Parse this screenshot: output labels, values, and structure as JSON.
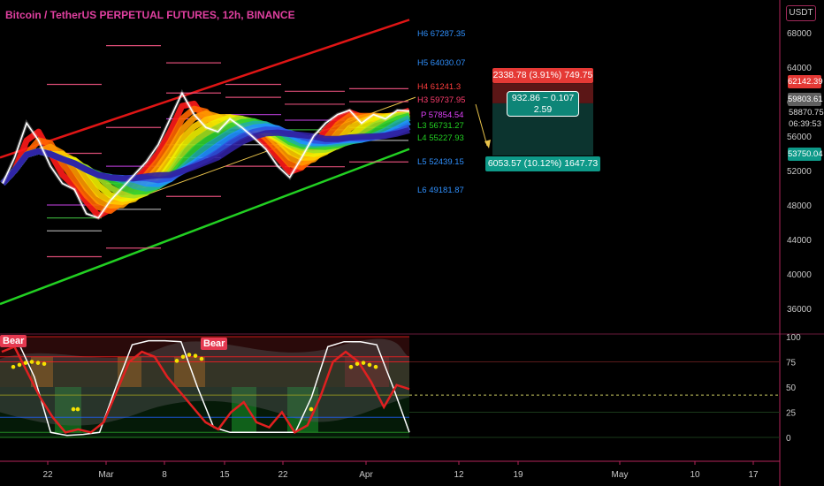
{
  "header": {
    "title": "Bitcoin / TetherUS PERPETUAL FUTURES, 12h, BINANCE",
    "currency": "USDT"
  },
  "colors": {
    "background": "#000000",
    "resistance": "#e01515",
    "support": "#22d022",
    "oscillator": "#e02020",
    "title": "#e040a0",
    "axis": "#b3255a"
  },
  "price_axis": {
    "ticks": [
      "68000",
      "64000",
      "60000",
      "56000",
      "52000",
      "48000",
      "44000",
      "40000",
      "36000"
    ],
    "labels": {
      "upper": "62142.39",
      "current": "59803.61",
      "last": "58870.75",
      "countdown": "06:39:53",
      "lower": "53750.04"
    }
  },
  "osc_axis": {
    "ticks": [
      "100",
      "75",
      "50",
      "25",
      "0"
    ]
  },
  "time_axis": {
    "ticks": [
      "22",
      "Mar",
      "8",
      "15",
      "22",
      "Apr",
      "12",
      "19",
      "May",
      "10",
      "17"
    ]
  },
  "levels": [
    {
      "label": "H6 67287.35",
      "color": "#2f8ffc"
    },
    {
      "label": "H5 64030.07",
      "color": "#2f8ffc"
    },
    {
      "label": "H4 61241.3",
      "color": "#ff3d3d"
    },
    {
      "label": "H3 59737.95",
      "color": "#ff3d6e"
    },
    {
      "label": "P 57854.54",
      "color": "#e040fb"
    },
    {
      "label": "L3 56731.27",
      "color": "#22d022"
    },
    {
      "label": "L4 55227.93",
      "color": "#22d022"
    },
    {
      "label": "L5 52439.15",
      "color": "#2f8ffc"
    },
    {
      "label": "L6 49181.87",
      "color": "#2f8ffc"
    }
  ],
  "trade_box": {
    "target": "2338.78 (3.91%) 749.75",
    "middle_line1": "932.86 ~ 0.107",
    "middle_line2": "2.59",
    "stop": "6053.57 (10.12%) 1647.73"
  },
  "signals": [
    "Bear",
    "Bear"
  ],
  "chart_data": [
    {
      "type": "line",
      "title": "Bitcoin / TetherUS PERPETUAL FUTURES, 12h, BINANCE",
      "xlabel": "",
      "ylabel": "",
      "ylim": [
        35000,
        70000
      ],
      "x_ticks": [
        "22",
        "Mar",
        "8",
        "15",
        "22",
        "Apr"
      ],
      "series": [
        {
          "values": [
            50500,
            53500,
            57500,
            55500,
            52500,
            50500,
            49800,
            47000,
            46500,
            48500,
            50000,
            51500,
            53000,
            55000,
            58000,
            61000,
            58500,
            57000,
            56500,
            58000,
            57000,
            55800,
            54500,
            52500,
            51200,
            53500,
            56000,
            57500,
            58500,
            59000,
            57500,
            58500,
            58000,
            59000,
            58900
          ]
        }
      ],
      "channel": {
        "upper": [
          53500,
          69500
        ],
        "lower": [
          36500,
          54500
        ]
      },
      "levels": [
        67287.35,
        64030.07,
        61241.3,
        59737.95,
        57854.54,
        56731.27,
        55227.93,
        52439.15,
        49181.87
      ]
    },
    {
      "type": "line",
      "ylim": [
        -8,
        104
      ],
      "y_ticks": [
        100,
        75,
        50,
        25,
        0
      ],
      "series": [
        {
          "values": [
            85,
            90,
            65,
            40,
            20,
            5,
            8,
            5,
            15,
            45,
            75,
            85,
            80,
            60,
            45,
            30,
            15,
            8,
            25,
            35,
            15,
            10,
            25,
            5,
            12,
            40,
            75,
            85,
            75,
            55,
            30,
            52,
            48
          ]
        },
        {
          "values": [
            95,
            95,
            60,
            5,
            2,
            3,
            5,
            50,
            92,
            96,
            96,
            95,
            50,
            10,
            5,
            5,
            5,
            5,
            5,
            40,
            90,
            95,
            95,
            92,
            50,
            5
          ]
        }
      ],
      "annotations": [
        "Bear",
        "Bear"
      ]
    }
  ]
}
